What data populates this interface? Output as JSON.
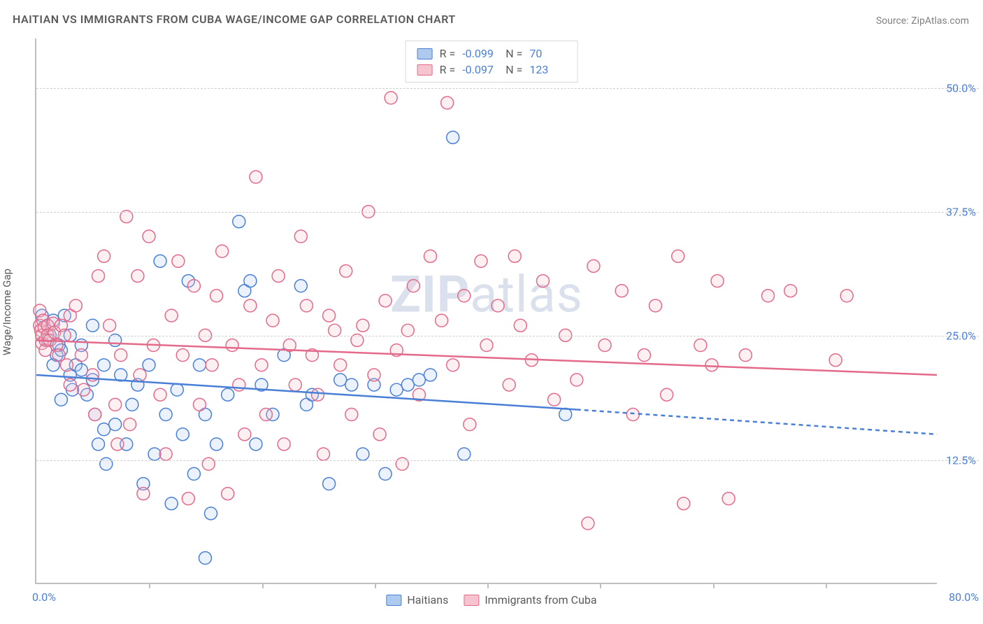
{
  "title": "HAITIAN VS IMMIGRANTS FROM CUBA WAGE/INCOME GAP CORRELATION CHART",
  "source": "Source: ZipAtlas.com",
  "watermark_bold": "ZIP",
  "watermark_rest": "atlas",
  "y_axis_label": "Wage/Income Gap",
  "chart": {
    "type": "scatter",
    "background_color": "#ffffff",
    "grid_color": "#d0d0d0",
    "axis_color": "#bfbfbf",
    "tick_label_color": "#4a7fd6",
    "title_color": "#5a5a5a",
    "title_fontsize": 16,
    "tick_fontsize": 16,
    "marker_radius": 9,
    "marker_fill_opacity": 0.25,
    "marker_stroke_width": 1.5,
    "trend_line_width": 2.5,
    "trend_dash": "6,5",
    "xlim": [
      0,
      80
    ],
    "ylim": [
      0,
      55
    ],
    "x_tick_step": 10,
    "y_ticks": [
      12.5,
      25.0,
      37.5,
      50.0
    ],
    "x_min_label": "0.0%",
    "x_max_label": "80.0%",
    "y_tick_labels": [
      "12.5%",
      "25.0%",
      "37.5%",
      "50.0%"
    ],
    "series": [
      {
        "name": "Haitians",
        "color_fill": "#aecbef",
        "color_stroke": "#4a7fd6",
        "R": "-0.099",
        "N": "70",
        "trend": {
          "x0": 0,
          "y0": 21.0,
          "x1_solid": 48,
          "y1_solid": 17.5,
          "x1": 80,
          "y1": 15.0
        },
        "points": [
          [
            37,
            45
          ],
          [
            0.5,
            27
          ],
          [
            1,
            26
          ],
          [
            1,
            24.5
          ],
          [
            1.2,
            25
          ],
          [
            1.5,
            26.5
          ],
          [
            1.8,
            23
          ],
          [
            1.5,
            22
          ],
          [
            2,
            24
          ],
          [
            2.2,
            23.5
          ],
          [
            2.5,
            27
          ],
          [
            3,
            21
          ],
          [
            2.2,
            18.5
          ],
          [
            3,
            25
          ],
          [
            3.5,
            22
          ],
          [
            3.2,
            19.5
          ],
          [
            4,
            24
          ],
          [
            4,
            21.5
          ],
          [
            4.5,
            19
          ],
          [
            5,
            26
          ],
          [
            5,
            20.5
          ],
          [
            5.2,
            17
          ],
          [
            5.5,
            14
          ],
          [
            6,
            22
          ],
          [
            6,
            15.5
          ],
          [
            6.2,
            12
          ],
          [
            7,
            24.5
          ],
          [
            7,
            16
          ],
          [
            7.5,
            21
          ],
          [
            8,
            14
          ],
          [
            8.5,
            18
          ],
          [
            9,
            20
          ],
          [
            9.5,
            10
          ],
          [
            10,
            22
          ],
          [
            10.5,
            13
          ],
          [
            11,
            32.5
          ],
          [
            11.5,
            17
          ],
          [
            12,
            8
          ],
          [
            12.5,
            19.5
          ],
          [
            13,
            15
          ],
          [
            13.5,
            30.5
          ],
          [
            14,
            11
          ],
          [
            14.5,
            22
          ],
          [
            15,
            17
          ],
          [
            15,
            2.5
          ],
          [
            15.5,
            7
          ],
          [
            16,
            14
          ],
          [
            17,
            19
          ],
          [
            18,
            36.5
          ],
          [
            18.5,
            29.5
          ],
          [
            19,
            30.5
          ],
          [
            19.5,
            14
          ],
          [
            20,
            20
          ],
          [
            21,
            17
          ],
          [
            22,
            23
          ],
          [
            23.5,
            30
          ],
          [
            24,
            18
          ],
          [
            24.5,
            19
          ],
          [
            26,
            10
          ],
          [
            27,
            20.5
          ],
          [
            28,
            20
          ],
          [
            29,
            13
          ],
          [
            30,
            20
          ],
          [
            31,
            11
          ],
          [
            32,
            19.5
          ],
          [
            33,
            20
          ],
          [
            34,
            20.5
          ],
          [
            35,
            21
          ],
          [
            38,
            13
          ],
          [
            47,
            17
          ]
        ]
      },
      {
        "name": "Immigrants from Cuba",
        "color_fill": "#f5c4ce",
        "color_stroke": "#e36a8a",
        "R": "-0.097",
        "N": "123",
        "trend": {
          "x0": 0,
          "y0": 24.5,
          "x1_solid": 80,
          "y1_solid": 21.0,
          "x1": 80,
          "y1": 21.0
        },
        "points": [
          [
            0.3,
            27.5
          ],
          [
            0.3,
            26
          ],
          [
            0.4,
            25.5
          ],
          [
            0.5,
            25
          ],
          [
            0.5,
            24.2
          ],
          [
            0.6,
            26.5
          ],
          [
            0.7,
            25.8
          ],
          [
            0.8,
            24.5
          ],
          [
            0.8,
            23.5
          ],
          [
            1,
            26
          ],
          [
            1,
            25
          ],
          [
            1.2,
            24.5
          ],
          [
            1.5,
            26.2
          ],
          [
            1.6,
            25.3
          ],
          [
            1.8,
            24
          ],
          [
            2,
            23
          ],
          [
            2.2,
            26
          ],
          [
            2.5,
            25
          ],
          [
            2.7,
            22
          ],
          [
            3,
            27
          ],
          [
            3,
            20
          ],
          [
            3.5,
            28
          ],
          [
            4,
            23
          ],
          [
            4.2,
            19.5
          ],
          [
            5,
            21
          ],
          [
            5.2,
            17
          ],
          [
            5.5,
            31
          ],
          [
            6,
            33
          ],
          [
            6.5,
            26
          ],
          [
            7,
            18
          ],
          [
            7.2,
            14
          ],
          [
            7.5,
            23
          ],
          [
            8,
            37
          ],
          [
            8.3,
            16
          ],
          [
            9,
            31
          ],
          [
            9.2,
            21
          ],
          [
            9.5,
            9
          ],
          [
            10,
            35
          ],
          [
            10.4,
            24
          ],
          [
            11,
            19
          ],
          [
            11.5,
            13
          ],
          [
            12,
            27
          ],
          [
            12.6,
            32.5
          ],
          [
            13,
            23
          ],
          [
            13.5,
            8.5
          ],
          [
            14,
            30
          ],
          [
            14.5,
            18
          ],
          [
            15,
            25
          ],
          [
            15.3,
            12
          ],
          [
            15.6,
            22
          ],
          [
            16,
            29
          ],
          [
            16.5,
            33.5
          ],
          [
            17,
            9
          ],
          [
            17.4,
            24
          ],
          [
            18,
            20
          ],
          [
            18.5,
            15
          ],
          [
            19,
            28
          ],
          [
            19.5,
            41
          ],
          [
            20,
            22
          ],
          [
            20.4,
            17
          ],
          [
            21,
            26.5
          ],
          [
            21.5,
            31
          ],
          [
            22,
            14
          ],
          [
            22.5,
            24
          ],
          [
            23,
            20
          ],
          [
            23.5,
            35
          ],
          [
            24,
            28
          ],
          [
            24.5,
            23
          ],
          [
            25,
            19
          ],
          [
            25.5,
            13
          ],
          [
            26,
            27
          ],
          [
            26.5,
            25.5
          ],
          [
            27,
            22
          ],
          [
            27.5,
            31.5
          ],
          [
            28,
            17
          ],
          [
            28.5,
            24.5
          ],
          [
            29,
            26
          ],
          [
            29.5,
            37.5
          ],
          [
            30,
            21
          ],
          [
            30.5,
            15
          ],
          [
            31,
            28.5
          ],
          [
            31.5,
            49
          ],
          [
            32,
            23.5
          ],
          [
            32.5,
            12
          ],
          [
            33,
            25.5
          ],
          [
            33.5,
            30
          ],
          [
            34,
            19
          ],
          [
            35,
            33
          ],
          [
            36,
            26.5
          ],
          [
            36.5,
            48.5
          ],
          [
            37,
            22
          ],
          [
            38,
            29
          ],
          [
            38.5,
            16
          ],
          [
            39.5,
            32.5
          ],
          [
            40,
            24
          ],
          [
            41,
            28
          ],
          [
            42,
            20
          ],
          [
            42.5,
            33
          ],
          [
            43,
            26
          ],
          [
            44,
            22.5
          ],
          [
            45,
            30.5
          ],
          [
            46,
            18.5
          ],
          [
            47,
            25
          ],
          [
            48,
            20.5
          ],
          [
            49,
            6
          ],
          [
            49.5,
            32
          ],
          [
            50.5,
            24
          ],
          [
            52,
            29.5
          ],
          [
            53,
            17
          ],
          [
            54,
            23
          ],
          [
            55,
            28
          ],
          [
            56,
            19
          ],
          [
            57,
            33
          ],
          [
            57.5,
            8
          ],
          [
            59,
            24
          ],
          [
            60,
            22
          ],
          [
            60.5,
            30.5
          ],
          [
            61.5,
            8.5
          ],
          [
            63,
            23
          ],
          [
            65,
            29
          ],
          [
            67,
            29.5
          ],
          [
            71,
            22.5
          ],
          [
            72,
            29
          ]
        ]
      }
    ]
  },
  "legend_bottom": {
    "item1": "Haitians",
    "item2": "Immigrants from Cuba"
  }
}
